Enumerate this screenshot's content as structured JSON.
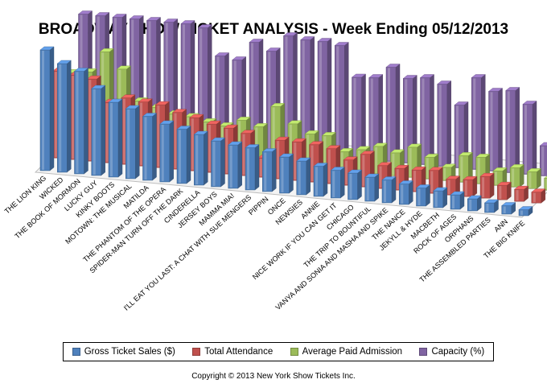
{
  "chart_data": {
    "type": "bar",
    "title": "BROADWAY SHOW TICKET ANALYSIS - Week Ending 05/12/2013",
    "categories": [
      "THE LION KING",
      "WICKED",
      "THE BOOK OF MORMON",
      "LUCKY GUY",
      "KINKY BOOTS",
      "MOTOWN: THE MUSICAL",
      "MATILDA",
      "THE PHANTOM OF THE OPERA",
      "SPIDER-MAN TURN OFF THE DARK",
      "CINDERELLA",
      "JERSEY BOYS",
      "MAMMA MIA!",
      "I'LL EAT YOU LAST: A CHAT WITH SUE MENGERS",
      "PIPPIN",
      "ONCE",
      "NEWSIES",
      "ANNIE",
      "NICE WORK IF YOU CAN GET IT",
      "CHICAGO",
      "THE TRIP TO BOUNTIFUL",
      "VANYA AND SONIA AND MASHA AND SPIKE",
      "THE NANCE",
      "JEKYLL & HYDE",
      "MACBETH",
      "ROCK OF AGES",
      "ORPHANS",
      "THE ASSEMBLED PARTIES",
      "ANN",
      "THE BIG KNIFE"
    ],
    "series": [
      {
        "name": "Gross Ticket Sales ($)",
        "color": "#4F81BD",
        "values": [
          100,
          90,
          85,
          72,
          62,
          58,
          53,
          48,
          45,
          42,
          38,
          36,
          35,
          33,
          30,
          28,
          25,
          23,
          22,
          20,
          19,
          17,
          15,
          14,
          12,
          10,
          8,
          7,
          5
        ]
      },
      {
        "name": "Total Attendance",
        "color": "#C0504D",
        "values": [
          72,
          70,
          68,
          50,
          55,
          53,
          52,
          47,
          44,
          40,
          38,
          35,
          16,
          32,
          32,
          31,
          29,
          21,
          27,
          19,
          18,
          18,
          19,
          13,
          14,
          18,
          12,
          10,
          9
        ]
      },
      {
        "name": "Average Paid Admission",
        "color": "#9BBB59",
        "values": [
          60,
          62,
          80,
          67,
          42,
          38,
          34,
          33,
          30,
          28,
          34,
          30,
          48,
          35,
          28,
          28,
          16,
          19,
          23,
          19,
          25,
          18,
          11,
          22,
          22,
          12,
          16,
          14,
          10
        ]
      },
      {
        "name": "Capacity (%)",
        "color": "#8064A2",
        "values": [
          98,
          98,
          98,
          98,
          98,
          98,
          98,
          96,
          74,
          72,
          88,
          82,
          96,
          94,
          94,
          92,
          67,
          68,
          78,
          70,
          72,
          68,
          52,
          76,
          66,
          68,
          58,
          25,
          38
        ]
      }
    ],
    "ylim": [
      0,
      100
    ],
    "grid": false,
    "legend": "bottom"
  },
  "copyright": "Copyright © 2013 New York Show Tickets Inc."
}
